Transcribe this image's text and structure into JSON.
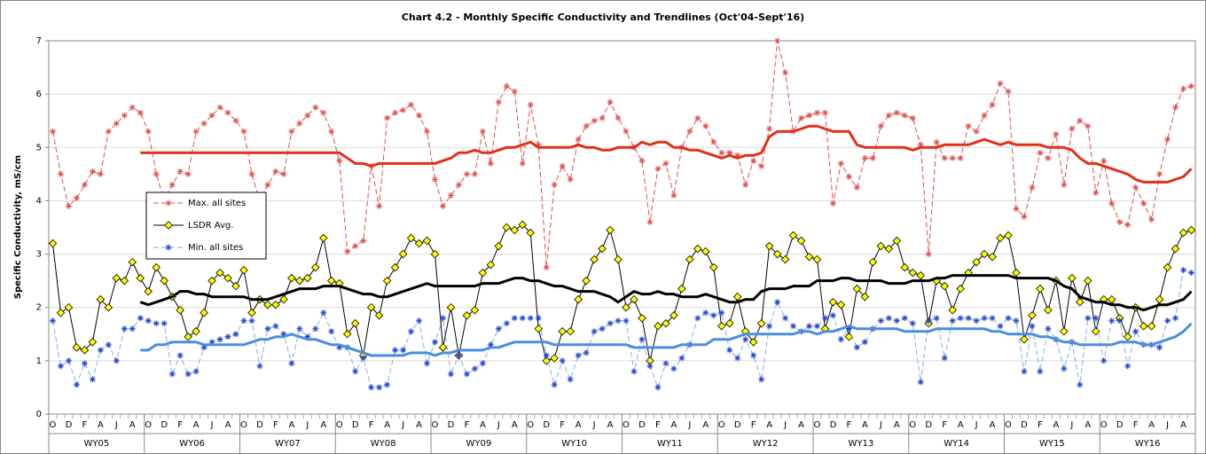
{
  "chart_data": {
    "type": "line",
    "title": "Chart 4.2 - Monthly Specific Conductivity and Trendlines (Oct'04-Sept'16)",
    "y_label": "Specific Conductivity, mS/cm",
    "ylim": [
      0,
      7
    ],
    "yticks": [
      0,
      1,
      2,
      3,
      4,
      5,
      6,
      7
    ],
    "grid": true,
    "legend": "center-left",
    "categories": [
      "O",
      null,
      "D",
      null,
      "F",
      null,
      "A",
      null,
      "J",
      null,
      "A",
      null,
      "O",
      null,
      "D",
      null,
      "F",
      null,
      "A",
      null,
      "J",
      null,
      "A",
      null,
      "O",
      null,
      "D",
      null,
      "F",
      null,
      "A",
      null,
      "J",
      null,
      "A",
      null,
      "O",
      null,
      "D",
      null,
      "F",
      null,
      "A",
      null,
      "J",
      null,
      "A",
      null,
      "O",
      null,
      "D",
      null,
      "F",
      null,
      "A",
      null,
      "J",
      null,
      "A",
      null,
      "O",
      null,
      "D",
      null,
      "F",
      null,
      "A",
      null,
      "J",
      null,
      "A",
      null,
      "O",
      null,
      "D",
      null,
      "F",
      null,
      "A",
      null,
      "J",
      null,
      "A",
      null,
      "O",
      null,
      "D",
      null,
      "F",
      null,
      "A",
      null,
      "J",
      null,
      "A",
      null,
      "O",
      null,
      "D",
      null,
      "F",
      null,
      "A",
      null,
      "J",
      null,
      "A",
      null,
      "O",
      null,
      "D",
      null,
      "F",
      null,
      "A",
      null,
      "J",
      null,
      "A",
      null,
      "O",
      null,
      "D",
      null,
      "F",
      null,
      "A",
      null,
      "J",
      null,
      "A",
      null,
      "O",
      null,
      "D",
      null,
      "F",
      null,
      "A",
      null,
      "J",
      null,
      "A",
      null
    ],
    "groups": [
      "WY05",
      "WY06",
      "WY07",
      "WY08",
      "WY09",
      "WY10",
      "WY11",
      "WY12",
      "WY13",
      "WY14",
      "WY15",
      "WY16"
    ],
    "series": [
      {
        "name": "Max. all sites",
        "color": "#e05050",
        "marker": "asterisk",
        "dashed": true,
        "trend_color": "#e0301a",
        "values": [
          5.3,
          4.5,
          3.9,
          4.05,
          4.3,
          4.55,
          4.5,
          5.3,
          5.45,
          5.6,
          5.75,
          5.65,
          5.3,
          4.5,
          4.0,
          4.3,
          4.55,
          4.5,
          5.3,
          5.45,
          5.6,
          5.75,
          5.65,
          5.5,
          5.3,
          4.5,
          4.0,
          4.3,
          4.55,
          4.5,
          5.3,
          5.45,
          5.6,
          5.75,
          5.65,
          5.3,
          4.75,
          3.05,
          3.15,
          3.25,
          4.65,
          3.9,
          5.55,
          5.65,
          5.7,
          5.8,
          5.6,
          5.3,
          4.4,
          3.9,
          4.1,
          4.3,
          4.5,
          4.5,
          5.3,
          4.7,
          5.85,
          6.15,
          6.05,
          4.7,
          5.8,
          5.05,
          2.75,
          4.3,
          4.65,
          4.4,
          5.15,
          5.4,
          5.5,
          5.55,
          5.85,
          5.55,
          5.3,
          5.0,
          4.75,
          3.6,
          4.6,
          4.7,
          4.1,
          5.0,
          5.3,
          5.55,
          5.4,
          5.1,
          4.9,
          4.9,
          4.85,
          4.3,
          4.75,
          4.65,
          5.35,
          7.0,
          6.4,
          5.3,
          5.55,
          5.6,
          5.65,
          5.65,
          3.95,
          4.7,
          4.45,
          4.25,
          4.8,
          4.8,
          5.4,
          5.6,
          5.65,
          5.6,
          5.55,
          5.05,
          3.0,
          5.1,
          4.8,
          4.8,
          4.8,
          5.4,
          5.3,
          5.6,
          5.8,
          6.2,
          6.05,
          3.85,
          3.7,
          4.25,
          4.9,
          4.8,
          5.25,
          4.3,
          5.35,
          5.5,
          5.4,
          4.15,
          4.75,
          3.95,
          3.6,
          3.55,
          4.25,
          3.95,
          3.65,
          4.5,
          5.15,
          5.75,
          6.1,
          6.15
        ],
        "trend": [
          null,
          null,
          null,
          null,
          null,
          null,
          null,
          null,
          null,
          null,
          null,
          4.9,
          4.9,
          4.9,
          4.9,
          4.9,
          4.9,
          4.9,
          4.9,
          4.9,
          4.9,
          4.9,
          4.9,
          4.9,
          4.9,
          4.9,
          4.9,
          4.9,
          4.9,
          4.9,
          4.9,
          4.9,
          4.9,
          4.9,
          4.9,
          4.9,
          4.9,
          4.8,
          4.7,
          4.7,
          4.65,
          4.7,
          4.7,
          4.7,
          4.7,
          4.7,
          4.7,
          4.7,
          4.7,
          4.75,
          4.8,
          4.9,
          4.9,
          4.95,
          4.9,
          4.9,
          4.95,
          5.0,
          5.0,
          5.05,
          5.1,
          5.0,
          5.0,
          5.0,
          5.0,
          5.0,
          5.05,
          5.0,
          5.0,
          4.95,
          4.95,
          5.0,
          5.0,
          5.0,
          5.1,
          5.05,
          5.1,
          5.1,
          5.0,
          5.0,
          4.95,
          4.95,
          4.9,
          4.85,
          4.8,
          4.85,
          4.8,
          4.85,
          4.85,
          4.9,
          5.2,
          5.3,
          5.3,
          5.3,
          5.35,
          5.4,
          5.4,
          5.35,
          5.3,
          5.3,
          5.3,
          5.05,
          5.0,
          5.0,
          5.0,
          5.0,
          5.0,
          5.0,
          4.95,
          5.0,
          5.0,
          5.0,
          5.05,
          5.05,
          5.05,
          5.05,
          5.1,
          5.15,
          5.1,
          5.05,
          5.1,
          5.05,
          5.05,
          5.05,
          5.05,
          5.0,
          5.0,
          5.0,
          4.95,
          4.8,
          4.7,
          4.7,
          4.65,
          4.6,
          4.55,
          4.5,
          4.4,
          4.35,
          4.35,
          4.35,
          4.35,
          4.4,
          4.45,
          4.6
        ]
      },
      {
        "name": "LSDR Avg.",
        "color": "#000000",
        "marker": "diamond",
        "marker_fill": "#ffff00",
        "dashed": false,
        "trend_color": "#000000",
        "values": [
          3.2,
          1.9,
          2.0,
          1.25,
          1.2,
          1.35,
          2.15,
          2.0,
          2.55,
          2.5,
          2.85,
          2.55,
          2.3,
          2.75,
          2.5,
          2.2,
          1.95,
          1.45,
          1.55,
          1.9,
          2.5,
          2.65,
          2.55,
          2.4,
          2.7,
          1.9,
          2.15,
          2.05,
          2.05,
          2.15,
          2.55,
          2.5,
          2.55,
          2.75,
          3.3,
          2.5,
          2.45,
          1.5,
          1.7,
          1.1,
          2.0,
          1.85,
          2.5,
          2.75,
          3.0,
          3.3,
          3.2,
          3.25,
          3.0,
          1.25,
          2.0,
          1.1,
          1.85,
          1.95,
          2.65,
          2.8,
          3.15,
          3.5,
          3.45,
          3.55,
          3.4,
          1.6,
          1.0,
          1.05,
          1.55,
          1.55,
          2.15,
          2.5,
          2.9,
          3.1,
          3.45,
          2.9,
          2.0,
          2.15,
          1.8,
          1.0,
          1.65,
          1.7,
          1.85,
          2.35,
          2.9,
          3.1,
          3.05,
          2.75,
          1.65,
          1.7,
          2.2,
          1.55,
          1.35,
          1.7,
          3.15,
          3.0,
          2.9,
          3.35,
          3.25,
          2.95,
          2.9,
          1.6,
          2.1,
          2.05,
          1.45,
          2.35,
          2.2,
          2.85,
          3.15,
          3.1,
          3.25,
          2.75,
          2.65,
          2.6,
          1.7,
          2.5,
          2.4,
          1.95,
          2.35,
          2.65,
          2.85,
          3.0,
          2.95,
          3.3,
          3.35,
          2.65,
          1.4,
          1.85,
          2.35,
          1.95,
          2.5,
          1.55,
          2.55,
          2.1,
          2.5,
          1.55,
          2.15,
          2.15,
          1.8,
          1.45,
          2.0,
          1.65,
          1.65,
          2.15,
          2.75,
          3.1,
          3.4,
          3.45
        ],
        "trend": [
          null,
          null,
          null,
          null,
          null,
          null,
          null,
          null,
          null,
          null,
          null,
          2.1,
          2.05,
          2.1,
          2.15,
          2.2,
          2.3,
          2.3,
          2.25,
          2.25,
          2.2,
          2.2,
          2.2,
          2.2,
          2.2,
          2.15,
          2.15,
          2.15,
          2.2,
          2.25,
          2.3,
          2.35,
          2.35,
          2.35,
          2.4,
          2.4,
          2.4,
          2.35,
          2.3,
          2.25,
          2.25,
          2.2,
          2.2,
          2.25,
          2.3,
          2.35,
          2.4,
          2.45,
          2.4,
          2.4,
          2.4,
          2.4,
          2.4,
          2.4,
          2.45,
          2.45,
          2.45,
          2.5,
          2.55,
          2.55,
          2.5,
          2.5,
          2.45,
          2.4,
          2.4,
          2.35,
          2.3,
          2.3,
          2.3,
          2.25,
          2.2,
          2.1,
          2.2,
          2.3,
          2.25,
          2.25,
          2.3,
          2.25,
          2.25,
          2.2,
          2.2,
          2.2,
          2.25,
          2.2,
          2.15,
          2.1,
          2.1,
          2.15,
          2.15,
          2.3,
          2.35,
          2.35,
          2.35,
          2.4,
          2.4,
          2.4,
          2.5,
          2.5,
          2.5,
          2.55,
          2.55,
          2.5,
          2.5,
          2.5,
          2.5,
          2.45,
          2.45,
          2.45,
          2.5,
          2.5,
          2.5,
          2.55,
          2.55,
          2.6,
          2.6,
          2.6,
          2.6,
          2.6,
          2.6,
          2.6,
          2.6,
          2.55,
          2.55,
          2.55,
          2.55,
          2.55,
          2.5,
          2.4,
          2.35,
          2.2,
          2.15,
          2.1,
          2.1,
          2.05,
          2.05,
          2.0,
          2.0,
          1.95,
          2.0,
          2.05,
          2.05,
          2.1,
          2.15,
          2.3
        ]
      },
      {
        "name": "Min. all sites",
        "color": "#2040d0",
        "line_color": "#7fb0f0",
        "marker": "asterisk",
        "dashed": true,
        "trend_color": "#4a8ee0",
        "values": [
          1.75,
          0.9,
          1.0,
          0.55,
          0.95,
          0.65,
          1.2,
          1.3,
          1.0,
          1.6,
          1.6,
          1.8,
          1.75,
          1.7,
          1.7,
          0.75,
          1.1,
          0.75,
          0.8,
          1.25,
          1.35,
          1.4,
          1.45,
          1.5,
          1.75,
          1.75,
          0.9,
          1.6,
          1.65,
          1.5,
          0.95,
          1.6,
          1.45,
          1.6,
          1.9,
          1.55,
          1.25,
          1.25,
          0.8,
          1.05,
          0.5,
          0.5,
          0.55,
          1.2,
          1.2,
          1.55,
          1.75,
          0.95,
          1.35,
          1.8,
          0.75,
          1.1,
          0.75,
          0.85,
          0.95,
          1.3,
          1.6,
          1.7,
          1.8,
          1.8,
          1.8,
          1.8,
          1.1,
          0.55,
          1.0,
          0.65,
          1.1,
          1.15,
          1.55,
          1.6,
          1.7,
          1.75,
          1.75,
          0.8,
          1.4,
          0.9,
          0.5,
          0.95,
          0.85,
          1.05,
          1.3,
          1.8,
          1.9,
          1.85,
          1.9,
          1.2,
          1.05,
          1.4,
          1.1,
          0.65,
          1.65,
          2.1,
          1.8,
          1.65,
          1.55,
          1.65,
          1.65,
          1.8,
          1.85,
          1.4,
          1.6,
          1.25,
          1.35,
          1.6,
          1.75,
          1.8,
          1.75,
          1.8,
          1.7,
          0.6,
          1.75,
          1.8,
          1.05,
          1.75,
          1.8,
          1.8,
          1.75,
          1.8,
          1.8,
          1.65,
          1.8,
          1.75,
          0.8,
          1.65,
          0.8,
          1.6,
          1.4,
          0.85,
          1.35,
          0.55,
          1.8,
          1.8,
          1.0,
          1.75,
          1.75,
          0.9,
          1.55,
          1.3,
          1.3,
          1.25,
          1.75,
          1.8,
          2.7,
          2.65
        ],
        "trend": [
          null,
          null,
          null,
          null,
          null,
          null,
          null,
          null,
          null,
          null,
          null,
          1.2,
          1.2,
          1.3,
          1.3,
          1.35,
          1.35,
          1.35,
          1.35,
          1.3,
          1.3,
          1.3,
          1.3,
          1.3,
          1.3,
          1.35,
          1.4,
          1.4,
          1.45,
          1.45,
          1.5,
          1.45,
          1.4,
          1.4,
          1.35,
          1.3,
          1.3,
          1.25,
          1.2,
          1.15,
          1.1,
          1.1,
          1.1,
          1.1,
          1.1,
          1.15,
          1.15,
          1.15,
          1.1,
          1.15,
          1.15,
          1.2,
          1.2,
          1.2,
          1.2,
          1.25,
          1.25,
          1.3,
          1.35,
          1.35,
          1.35,
          1.35,
          1.35,
          1.3,
          1.3,
          1.3,
          1.3,
          1.3,
          1.3,
          1.3,
          1.3,
          1.3,
          1.3,
          1.25,
          1.25,
          1.25,
          1.25,
          1.25,
          1.25,
          1.3,
          1.3,
          1.3,
          1.3,
          1.4,
          1.4,
          1.4,
          1.45,
          1.5,
          1.5,
          1.5,
          1.5,
          1.5,
          1.5,
          1.5,
          1.55,
          1.55,
          1.5,
          1.55,
          1.55,
          1.6,
          1.65,
          1.6,
          1.6,
          1.6,
          1.6,
          1.6,
          1.6,
          1.55,
          1.55,
          1.55,
          1.55,
          1.6,
          1.6,
          1.6,
          1.6,
          1.6,
          1.6,
          1.6,
          1.55,
          1.55,
          1.5,
          1.5,
          1.5,
          1.5,
          1.45,
          1.45,
          1.4,
          1.35,
          1.35,
          1.3,
          1.3,
          1.3,
          1.3,
          1.3,
          1.35,
          1.35,
          1.35,
          1.3,
          1.3,
          1.35,
          1.4,
          1.45,
          1.55,
          1.7
        ]
      }
    ]
  }
}
